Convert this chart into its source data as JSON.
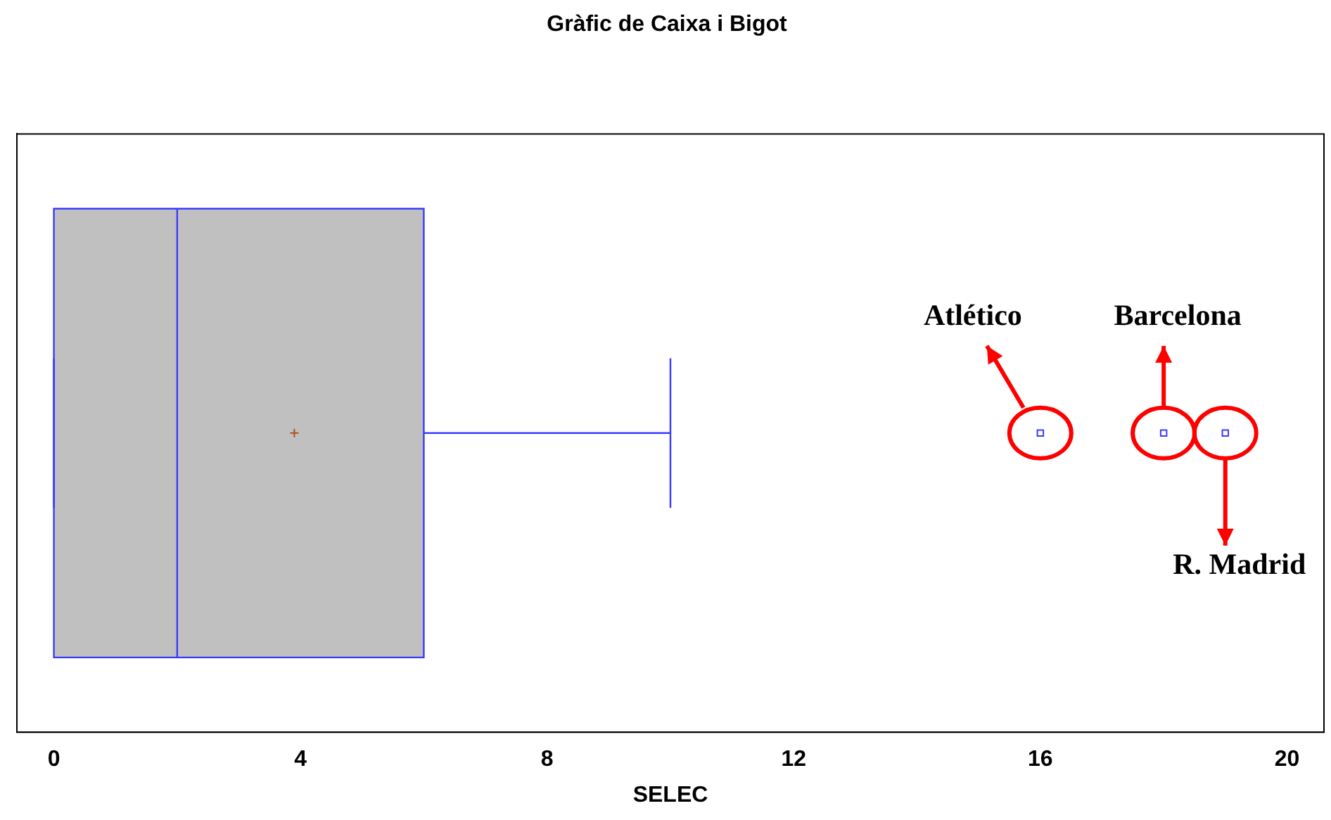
{
  "chart_data": {
    "type": "box",
    "title": "Gràfic de Caixa i Bigot",
    "xlabel": "SELEC",
    "orientation": "horizontal",
    "categories": [
      null
    ],
    "color": "#c0c0c0",
    "boxes": [
      {
        "low": 0,
        "q1": 0,
        "median": 2,
        "q3": 6,
        "high": 10,
        "mean": 3.9,
        "outliers": [
          16,
          18,
          19
        ]
      }
    ],
    "xlim": [
      -0.6,
      20.6
    ],
    "xticks": [
      0,
      4,
      8,
      12,
      16,
      20
    ],
    "tick_labels": "x",
    "grid": false,
    "legend": false,
    "annotations": [
      "Atlético",
      "Barcelona",
      "R. Madrid"
    ]
  }
}
